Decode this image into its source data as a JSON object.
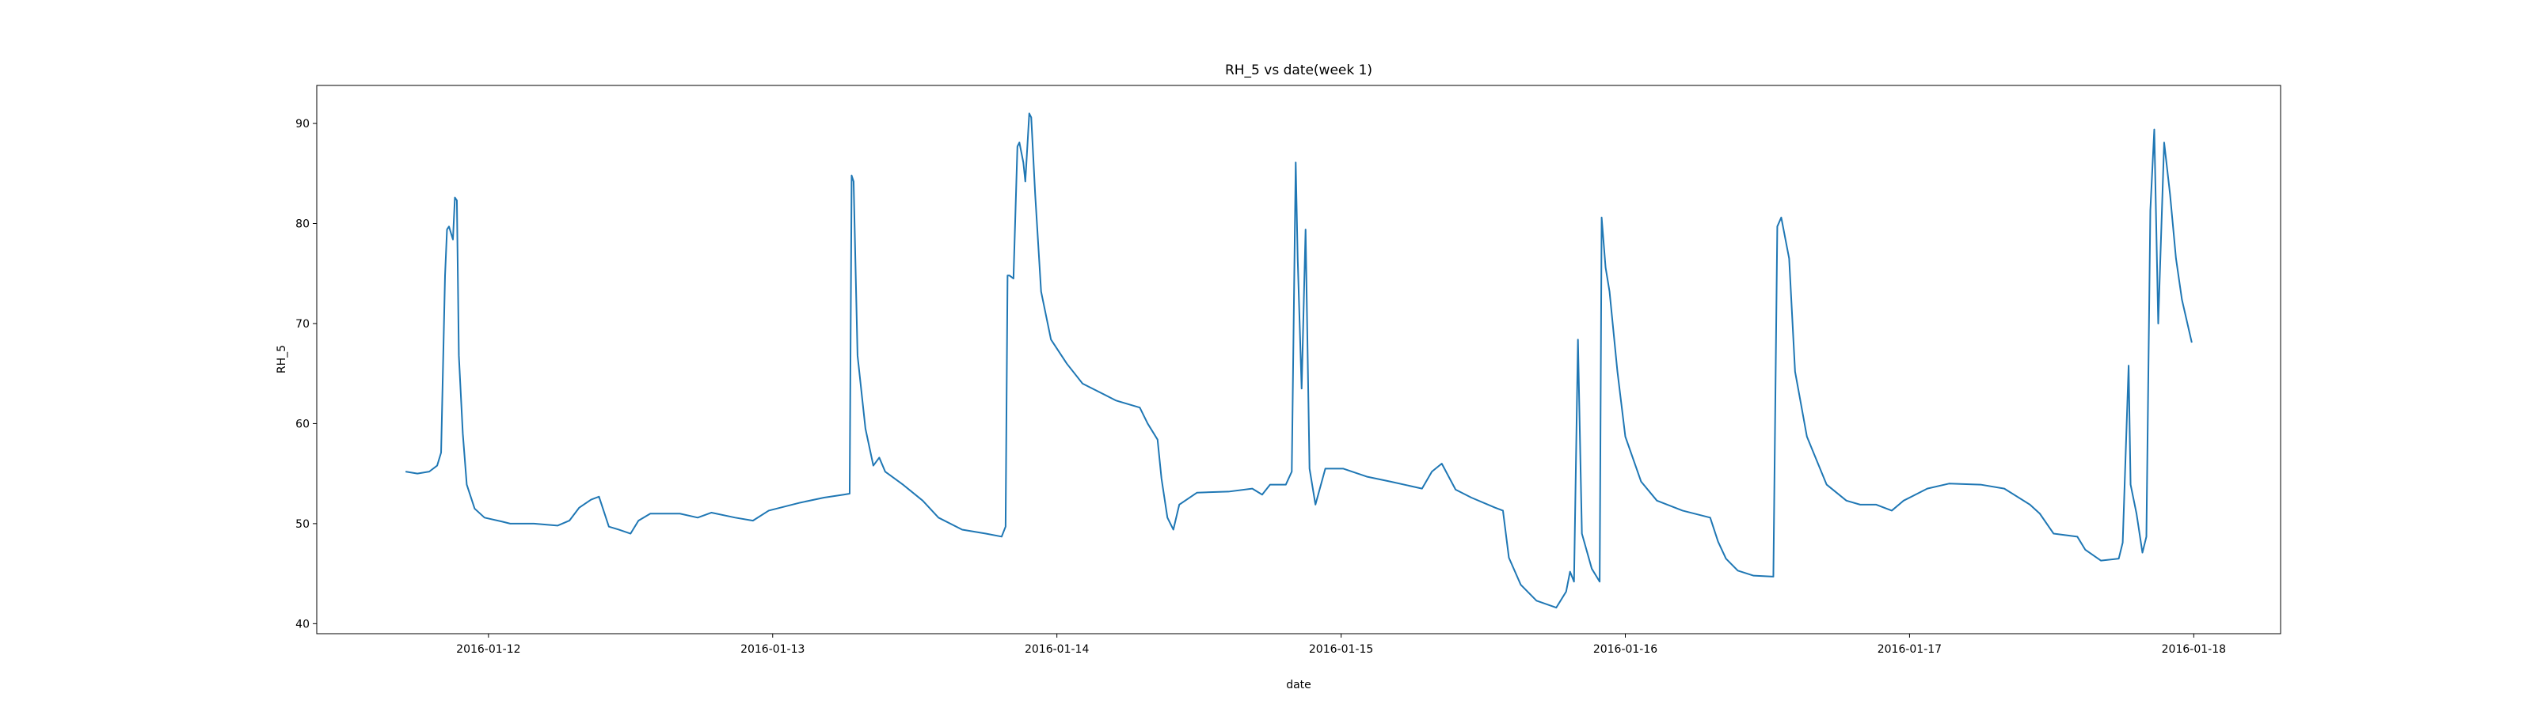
{
  "chart_data": {
    "type": "line",
    "title": "RH_5 vs date(week 1)",
    "x_label": "date",
    "y_label": "RH_5",
    "x": [
      "2016-01-11T17:00",
      "2016-01-11T18:00",
      "2016-01-11T19:00",
      "2016-01-11T19:40",
      "2016-01-11T20:00",
      "2016-01-11T20:20",
      "2016-01-11T20:30",
      "2016-01-11T20:40",
      "2016-01-11T21:00",
      "2016-01-11T21:10",
      "2016-01-11T21:20",
      "2016-01-11T21:30",
      "2016-01-11T21:50",
      "2016-01-11T22:10",
      "2016-01-11T22:50",
      "2016-01-11T23:40",
      "2016-01-12T01:10",
      "2016-01-12T01:50",
      "2016-01-12T03:50",
      "2016-01-12T05:50",
      "2016-01-12T06:50",
      "2016-01-12T07:40",
      "2016-01-12T08:40",
      "2016-01-12T09:20",
      "2016-01-12T09:40",
      "2016-01-12T10:10",
      "2016-01-12T11:00",
      "2016-01-12T12:00",
      "2016-01-12T12:40",
      "2016-01-12T13:40",
      "2016-01-12T16:10",
      "2016-01-12T17:40",
      "2016-01-12T18:50",
      "2016-01-12T20:50",
      "2016-01-12T22:20",
      "2016-01-12T23:40",
      "2016-01-13T02:20",
      "2016-01-13T04:20",
      "2016-01-13T06:00",
      "2016-01-13T06:30",
      "2016-01-13T06:40",
      "2016-01-13T06:50",
      "2016-01-13T07:10",
      "2016-01-13T07:50",
      "2016-01-13T08:30",
      "2016-01-13T09:00",
      "2016-01-13T09:30",
      "2016-01-13T11:00",
      "2016-01-13T12:40",
      "2016-01-13T14:00",
      "2016-01-13T16:00",
      "2016-01-13T18:00",
      "2016-01-13T19:20",
      "2016-01-13T19:40",
      "2016-01-13T19:50",
      "2016-01-13T20:00",
      "2016-01-13T20:20",
      "2016-01-13T20:40",
      "2016-01-13T20:50",
      "2016-01-13T21:10",
      "2016-01-13T21:20",
      "2016-01-13T21:40",
      "2016-01-13T21:50",
      "2016-01-13T22:10",
      "2016-01-13T22:40",
      "2016-01-13T23:30",
      "2016-01-14T00:50",
      "2016-01-14T02:10",
      "2016-01-14T05:00",
      "2016-01-14T07:00",
      "2016-01-14T07:40",
      "2016-01-14T08:30",
      "2016-01-14T08:50",
      "2016-01-14T09:20",
      "2016-01-14T09:50",
      "2016-01-14T10:20",
      "2016-01-14T11:50",
      "2016-01-14T14:30",
      "2016-01-14T16:30",
      "2016-01-14T17:20",
      "2016-01-14T18:00",
      "2016-01-14T19:20",
      "2016-01-14T19:50",
      "2016-01-14T20:10",
      "2016-01-14T20:20",
      "2016-01-14T20:40",
      "2016-01-14T21:00",
      "2016-01-14T21:20",
      "2016-01-14T21:50",
      "2016-01-14T22:40",
      "2016-01-15T00:10",
      "2016-01-15T02:10",
      "2016-01-15T04:10",
      "2016-01-15T06:50",
      "2016-01-15T07:40",
      "2016-01-15T08:30",
      "2016-01-15T09:40",
      "2016-01-15T11:00",
      "2016-01-15T13:00",
      "2016-01-15T13:40",
      "2016-01-15T14:10",
      "2016-01-15T15:10",
      "2016-01-15T16:30",
      "2016-01-15T18:10",
      "2016-01-15T19:00",
      "2016-01-15T19:20",
      "2016-01-15T19:40",
      "2016-01-15T20:00",
      "2016-01-15T20:20",
      "2016-01-15T21:10",
      "2016-01-15T21:50",
      "2016-01-15T22:00",
      "2016-01-15T22:20",
      "2016-01-15T22:40",
      "2016-01-15T23:20",
      "2016-01-16T00:00",
      "2016-01-16T01:20",
      "2016-01-16T02:40",
      "2016-01-16T04:50",
      "2016-01-16T07:10",
      "2016-01-16T07:50",
      "2016-01-16T08:30",
      "2016-01-16T09:30",
      "2016-01-16T10:50",
      "2016-01-16T12:30",
      "2016-01-16T12:50",
      "2016-01-16T13:10",
      "2016-01-16T13:50",
      "2016-01-16T14:20",
      "2016-01-16T15:20",
      "2016-01-16T17:00",
      "2016-01-16T18:40",
      "2016-01-16T19:50",
      "2016-01-16T21:10",
      "2016-01-16T22:30",
      "2016-01-16T23:30",
      "2016-01-17T01:30",
      "2016-01-17T03:20",
      "2016-01-17T06:00",
      "2016-01-17T08:00",
      "2016-01-17T10:10",
      "2016-01-17T11:00",
      "2016-01-17T12:10",
      "2016-01-17T14:10",
      "2016-01-17T14:50",
      "2016-01-17T16:10",
      "2016-01-17T17:40",
      "2016-01-17T18:00",
      "2016-01-17T18:30",
      "2016-01-17T18:40",
      "2016-01-17T19:10",
      "2016-01-17T19:40",
      "2016-01-17T20:00",
      "2016-01-17T20:20",
      "2016-01-17T20:40",
      "2016-01-17T21:00",
      "2016-01-17T21:30",
      "2016-01-17T22:00",
      "2016-01-17T22:30",
      "2016-01-17T23:00",
      "2016-01-17T23:50"
    ],
    "series": [
      {
        "color": "#1f77b4",
        "values": [
          55.2,
          55.0,
          55.2,
          55.8,
          57.1,
          74.8,
          79.4,
          79.7,
          78.4,
          82.6,
          82.3,
          66.8,
          59.0,
          53.9,
          51.5,
          50.6,
          50.2,
          50.0,
          50.0,
          49.8,
          50.3,
          51.6,
          52.4,
          52.7,
          51.5,
          49.7,
          49.4,
          49.0,
          50.3,
          51.0,
          51.0,
          50.6,
          51.1,
          50.6,
          50.3,
          51.3,
          52.1,
          52.6,
          52.9,
          53.0,
          84.8,
          84.2,
          66.8,
          59.5,
          55.8,
          56.6,
          55.2,
          53.9,
          52.3,
          50.6,
          49.4,
          49.0,
          48.7,
          49.7,
          74.8,
          74.8,
          74.5,
          87.7,
          88.1,
          86.1,
          84.2,
          91.0,
          90.6,
          82.9,
          73.2,
          68.4,
          66.0,
          64.0,
          62.3,
          61.6,
          60.0,
          58.4,
          54.5,
          50.6,
          49.4,
          51.9,
          53.1,
          53.2,
          53.5,
          52.9,
          53.9,
          53.9,
          55.2,
          86.1,
          76.5,
          63.5,
          79.4,
          55.5,
          51.9,
          55.5,
          55.5,
          54.7,
          54.2,
          53.5,
          55.2,
          56.0,
          53.4,
          52.6,
          51.6,
          51.3,
          46.6,
          43.9,
          42.3,
          41.6,
          43.2,
          45.2,
          44.2,
          68.4,
          49.0,
          45.5,
          44.2,
          80.6,
          75.6,
          73.2,
          65.2,
          58.7,
          54.2,
          52.3,
          51.3,
          50.6,
          48.2,
          46.5,
          45.3,
          44.8,
          44.7,
          79.7,
          80.6,
          76.5,
          65.2,
          58.7,
          53.9,
          52.3,
          51.9,
          51.9,
          51.3,
          52.3,
          53.5,
          54.0,
          53.9,
          53.5,
          51.9,
          51.0,
          49.0,
          48.7,
          47.4,
          46.3,
          46.5,
          48.1,
          65.8,
          53.9,
          51.0,
          47.1,
          48.7,
          81.3,
          89.4,
          70.0,
          88.1,
          82.9,
          76.5,
          72.4,
          68.1
        ]
      }
    ],
    "xlim": [
      "2016-01-11T09:30",
      "2016-01-18T07:20"
    ],
    "xticks": [
      "2016-01-12",
      "2016-01-13",
      "2016-01-14",
      "2016-01-15",
      "2016-01-16",
      "2016-01-17",
      "2016-01-18"
    ],
    "ylim": [
      39,
      93.8
    ],
    "yticks": [
      40,
      50,
      60,
      70,
      80,
      90
    ],
    "grid": false
  }
}
